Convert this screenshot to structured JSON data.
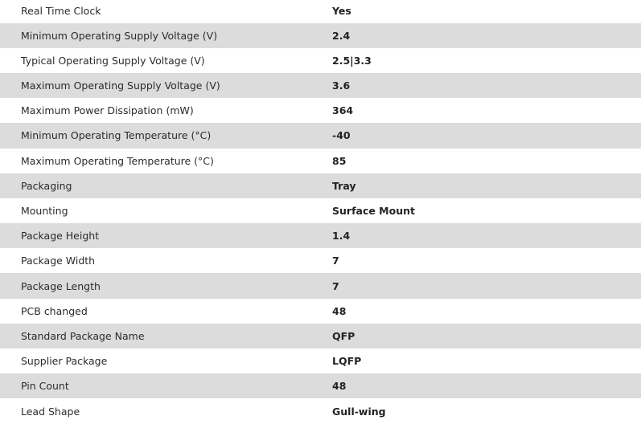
{
  "specs": [
    {
      "label": "Real Time Clock",
      "value": "Yes"
    },
    {
      "label": "Minimum Operating Supply Voltage (V)",
      "value": "2.4"
    },
    {
      "label": "Typical Operating Supply Voltage (V)",
      "value": "2.5|3.3"
    },
    {
      "label": "Maximum Operating Supply Voltage (V)",
      "value": "3.6"
    },
    {
      "label": "Maximum Power Dissipation (mW)",
      "value": "364"
    },
    {
      "label": "Minimum Operating Temperature (°C)",
      "value": "-40"
    },
    {
      "label": "Maximum Operating Temperature (°C)",
      "value": "85"
    },
    {
      "label": "Packaging",
      "value": "Tray"
    },
    {
      "label": "Mounting",
      "value": "Surface Mount"
    },
    {
      "label": "Package Height",
      "value": "1.4"
    },
    {
      "label": "Package Width",
      "value": "7"
    },
    {
      "label": "Package Length",
      "value": "7"
    },
    {
      "label": "PCB changed",
      "value": "48"
    },
    {
      "label": "Standard Package Name",
      "value": "QFP"
    },
    {
      "label": "Supplier Package",
      "value": "LQFP"
    },
    {
      "label": "Pin Count",
      "value": "48"
    },
    {
      "label": "Lead Shape",
      "value": "Gull-wing"
    }
  ]
}
